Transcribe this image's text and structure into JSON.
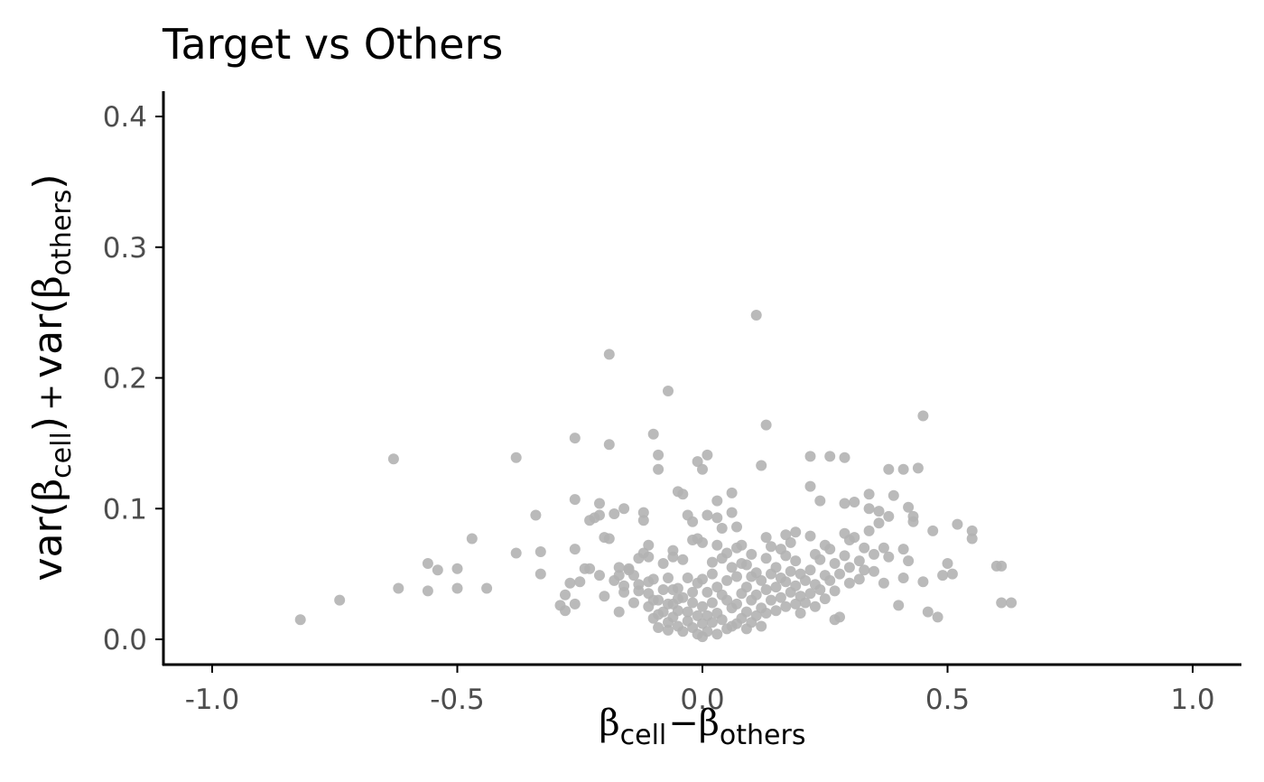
{
  "chart_data": {
    "type": "scatter",
    "title": "Target vs Others",
    "xlabel": {
      "symbol": "β",
      "sub1": "cell",
      "sep": "−",
      "sub2": "others"
    },
    "ylabel": {
      "func": "var",
      "symbol": "β",
      "sub1": "cell",
      "plus": "+",
      "sub2": "others"
    },
    "xlim": [
      -1.1,
      1.1
    ],
    "ylim": [
      -0.02,
      0.42
    ],
    "xticks": [
      -1.0,
      -0.5,
      0.0,
      0.5,
      1.0
    ],
    "xtick_labels": [
      "-1.0",
      "-0.5",
      "0.0",
      "0.5",
      "1.0"
    ],
    "yticks": [
      0.0,
      0.1,
      0.2,
      0.3,
      0.4
    ],
    "ytick_labels": [
      "0.0",
      "0.1",
      "0.2",
      "0.3",
      "0.4"
    ],
    "grid": false,
    "point_color": "#b3b3b3",
    "axis_color": "#000000",
    "tick_label_color": "#4d4d4d",
    "points": [
      [
        -0.82,
        0.015
      ],
      [
        -0.74,
        0.03
      ],
      [
        -0.63,
        0.138
      ],
      [
        -0.62,
        0.039
      ],
      [
        -0.56,
        0.058
      ],
      [
        -0.56,
        0.037
      ],
      [
        -0.54,
        0.053
      ],
      [
        -0.5,
        0.054
      ],
      [
        -0.5,
        0.039
      ],
      [
        -0.47,
        0.077
      ],
      [
        -0.44,
        0.039
      ],
      [
        -0.38,
        0.139
      ],
      [
        -0.38,
        0.066
      ],
      [
        -0.34,
        0.095
      ],
      [
        -0.33,
        0.067
      ],
      [
        -0.33,
        0.05
      ],
      [
        -0.29,
        0.026
      ],
      [
        -0.28,
        0.022
      ],
      [
        -0.28,
        0.034
      ],
      [
        -0.27,
        0.043
      ],
      [
        -0.26,
        0.107
      ],
      [
        -0.26,
        0.154
      ],
      [
        -0.26,
        0.069
      ],
      [
        -0.26,
        0.027
      ],
      [
        -0.25,
        0.044
      ],
      [
        -0.24,
        0.054
      ],
      [
        -0.23,
        0.054
      ],
      [
        -0.23,
        0.091
      ],
      [
        -0.22,
        0.093
      ],
      [
        -0.21,
        0.095
      ],
      [
        -0.21,
        0.049
      ],
      [
        -0.21,
        0.104
      ],
      [
        -0.2,
        0.078
      ],
      [
        -0.2,
        0.033
      ],
      [
        -0.19,
        0.077
      ],
      [
        -0.19,
        0.218
      ],
      [
        -0.19,
        0.149
      ],
      [
        -0.18,
        0.045
      ],
      [
        -0.18,
        0.096
      ],
      [
        -0.17,
        0.049
      ],
      [
        -0.17,
        0.021
      ],
      [
        -0.17,
        0.055
      ],
      [
        -0.16,
        0.041
      ],
      [
        -0.16,
        0.036
      ],
      [
        -0.16,
        0.1
      ],
      [
        -0.15,
        0.054
      ],
      [
        -0.15,
        0.053
      ],
      [
        -0.14,
        0.049
      ],
      [
        -0.14,
        0.028
      ],
      [
        -0.13,
        0.042
      ],
      [
        -0.13,
        0.062
      ],
      [
        -0.13,
        0.037
      ],
      [
        -0.12,
        0.091
      ],
      [
        -0.12,
        0.066
      ],
      [
        -0.12,
        0.097
      ],
      [
        -0.11,
        0.025
      ],
      [
        -0.11,
        0.044
      ],
      [
        -0.11,
        0.072
      ],
      [
        -0.11,
        0.035
      ],
      [
        -0.11,
        0.063
      ],
      [
        -0.1,
        0.157
      ],
      [
        -0.1,
        0.016
      ],
      [
        -0.1,
        0.046
      ],
      [
        -0.1,
        0.03
      ],
      [
        -0.09,
        0.141
      ],
      [
        -0.09,
        0.13
      ],
      [
        -0.09,
        0.019
      ],
      [
        -0.09,
        0.009
      ],
      [
        -0.09,
        0.03
      ],
      [
        -0.08,
        0.038
      ],
      [
        -0.08,
        0.021
      ],
      [
        -0.08,
        0.058
      ],
      [
        -0.07,
        0.027
      ],
      [
        -0.07,
        0.013
      ],
      [
        -0.07,
        0.047
      ],
      [
        -0.07,
        0.19
      ],
      [
        -0.07,
        0.007
      ],
      [
        -0.06,
        0.027
      ],
      [
        -0.06,
        0.068
      ],
      [
        -0.06,
        0.038
      ],
      [
        -0.06,
        0.017
      ],
      [
        -0.06,
        0.063
      ],
      [
        -0.05,
        0.031
      ],
      [
        -0.05,
        0.039
      ],
      [
        -0.05,
        0.113
      ],
      [
        -0.05,
        0.022
      ],
      [
        -0.05,
        0.01
      ],
      [
        -0.04,
        0.111
      ],
      [
        -0.04,
        0.061
      ],
      [
        -0.04,
        0.032
      ],
      [
        -0.04,
        0.006
      ],
      [
        -0.03,
        0.095
      ],
      [
        -0.03,
        0.047
      ],
      [
        -0.03,
        0.021
      ],
      [
        -0.03,
        0.014
      ],
      [
        -0.02,
        0.076
      ],
      [
        -0.02,
        0.09
      ],
      [
        -0.02,
        0.036
      ],
      [
        -0.02,
        0.028
      ],
      [
        -0.02,
        0.009
      ],
      [
        -0.01,
        0.136
      ],
      [
        -0.01,
        0.077
      ],
      [
        -0.01,
        0.043
      ],
      [
        -0.01,
        0.018
      ],
      [
        -0.01,
        0.004
      ],
      [
        0.0,
        0.13
      ],
      [
        0.0,
        0.074
      ],
      [
        0.0,
        0.046
      ],
      [
        0.0,
        0.025
      ],
      [
        0.0,
        0.012
      ],
      [
        0.0,
        0.002
      ],
      [
        0.01,
        0.095
      ],
      [
        0.01,
        0.141
      ],
      [
        0.01,
        0.036
      ],
      [
        0.01,
        0.018
      ],
      [
        0.01,
        0.006
      ],
      [
        0.02,
        0.059
      ],
      [
        0.02,
        0.05
      ],
      [
        0.02,
        0.028
      ],
      [
        0.02,
        0.013
      ],
      [
        0.03,
        0.093
      ],
      [
        0.03,
        0.106
      ],
      [
        0.03,
        0.072
      ],
      [
        0.03,
        0.04
      ],
      [
        0.03,
        0.02
      ],
      [
        0.03,
        0.004
      ],
      [
        0.04,
        0.085
      ],
      [
        0.04,
        0.062
      ],
      [
        0.04,
        0.034
      ],
      [
        0.04,
        0.015
      ],
      [
        0.05,
        0.066
      ],
      [
        0.05,
        0.03
      ],
      [
        0.05,
        0.045
      ],
      [
        0.05,
        0.008
      ],
      [
        0.06,
        0.097
      ],
      [
        0.06,
        0.112
      ],
      [
        0.06,
        0.055
      ],
      [
        0.06,
        0.024
      ],
      [
        0.06,
        0.01
      ],
      [
        0.07,
        0.086
      ],
      [
        0.07,
        0.07
      ],
      [
        0.07,
        0.048
      ],
      [
        0.07,
        0.027
      ],
      [
        0.07,
        0.012
      ],
      [
        0.08,
        0.072
      ],
      [
        0.08,
        0.058
      ],
      [
        0.08,
        0.035
      ],
      [
        0.08,
        0.016
      ],
      [
        0.09,
        0.057
      ],
      [
        0.09,
        0.04
      ],
      [
        0.09,
        0.021
      ],
      [
        0.09,
        0.008
      ],
      [
        0.1,
        0.065
      ],
      [
        0.1,
        0.048
      ],
      [
        0.1,
        0.03
      ],
      [
        0.1,
        0.013
      ],
      [
        0.11,
        0.248
      ],
      [
        0.11,
        0.051
      ],
      [
        0.11,
        0.034
      ],
      [
        0.11,
        0.018
      ],
      [
        0.12,
        0.133
      ],
      [
        0.12,
        0.045
      ],
      [
        0.12,
        0.024
      ],
      [
        0.12,
        0.01
      ],
      [
        0.13,
        0.164
      ],
      [
        0.13,
        0.078
      ],
      [
        0.13,
        0.062
      ],
      [
        0.13,
        0.038
      ],
      [
        0.13,
        0.02
      ],
      [
        0.14,
        0.071
      ],
      [
        0.14,
        0.05
      ],
      [
        0.14,
        0.03
      ],
      [
        0.15,
        0.055
      ],
      [
        0.15,
        0.04
      ],
      [
        0.15,
        0.022
      ],
      [
        0.16,
        0.069
      ],
      [
        0.16,
        0.047
      ],
      [
        0.16,
        0.032
      ],
      [
        0.17,
        0.08
      ],
      [
        0.17,
        0.064
      ],
      [
        0.17,
        0.044
      ],
      [
        0.17,
        0.025
      ],
      [
        0.18,
        0.074
      ],
      [
        0.18,
        0.052
      ],
      [
        0.18,
        0.036
      ],
      [
        0.19,
        0.082
      ],
      [
        0.19,
        0.06
      ],
      [
        0.19,
        0.041
      ],
      [
        0.19,
        0.027
      ],
      [
        0.2,
        0.05
      ],
      [
        0.2,
        0.033
      ],
      [
        0.2,
        0.02
      ],
      [
        0.21,
        0.045
      ],
      [
        0.21,
        0.028
      ],
      [
        0.22,
        0.14
      ],
      [
        0.22,
        0.117
      ],
      [
        0.22,
        0.079
      ],
      [
        0.22,
        0.053
      ],
      [
        0.22,
        0.035
      ],
      [
        0.23,
        0.065
      ],
      [
        0.23,
        0.042
      ],
      [
        0.23,
        0.025
      ],
      [
        0.24,
        0.106
      ],
      [
        0.24,
        0.061
      ],
      [
        0.24,
        0.038
      ],
      [
        0.25,
        0.072
      ],
      [
        0.25,
        0.049
      ],
      [
        0.25,
        0.031
      ],
      [
        0.26,
        0.14
      ],
      [
        0.26,
        0.069
      ],
      [
        0.26,
        0.045
      ],
      [
        0.27,
        0.058
      ],
      [
        0.27,
        0.037
      ],
      [
        0.27,
        0.015
      ],
      [
        0.28,
        0.05
      ],
      [
        0.28,
        0.017
      ],
      [
        0.29,
        0.139
      ],
      [
        0.29,
        0.104
      ],
      [
        0.29,
        0.081
      ],
      [
        0.29,
        0.064
      ],
      [
        0.3,
        0.076
      ],
      [
        0.3,
        0.055
      ],
      [
        0.3,
        0.043
      ],
      [
        0.31,
        0.078
      ],
      [
        0.31,
        0.105
      ],
      [
        0.32,
        0.06
      ],
      [
        0.32,
        0.046
      ],
      [
        0.33,
        0.053
      ],
      [
        0.33,
        0.07
      ],
      [
        0.34,
        0.111
      ],
      [
        0.34,
        0.1
      ],
      [
        0.34,
        0.083
      ],
      [
        0.35,
        0.065
      ],
      [
        0.35,
        0.052
      ],
      [
        0.36,
        0.089
      ],
      [
        0.36,
        0.098
      ],
      [
        0.37,
        0.07
      ],
      [
        0.37,
        0.043
      ],
      [
        0.38,
        0.13
      ],
      [
        0.38,
        0.094
      ],
      [
        0.38,
        0.063
      ],
      [
        0.39,
        0.11
      ],
      [
        0.4,
        0.026
      ],
      [
        0.41,
        0.13
      ],
      [
        0.41,
        0.069
      ],
      [
        0.41,
        0.047
      ],
      [
        0.42,
        0.101
      ],
      [
        0.42,
        0.06
      ],
      [
        0.43,
        0.094
      ],
      [
        0.43,
        0.09
      ],
      [
        0.44,
        0.131
      ],
      [
        0.45,
        0.171
      ],
      [
        0.45,
        0.044
      ],
      [
        0.46,
        0.021
      ],
      [
        0.47,
        0.083
      ],
      [
        0.48,
        0.017
      ],
      [
        0.49,
        0.049
      ],
      [
        0.5,
        0.058
      ],
      [
        0.51,
        0.05
      ],
      [
        0.52,
        0.088
      ],
      [
        0.55,
        0.083
      ],
      [
        0.55,
        0.077
      ],
      [
        0.6,
        0.056
      ],
      [
        0.61,
        0.056
      ],
      [
        0.61,
        0.028
      ],
      [
        0.63,
        0.028
      ]
    ]
  }
}
